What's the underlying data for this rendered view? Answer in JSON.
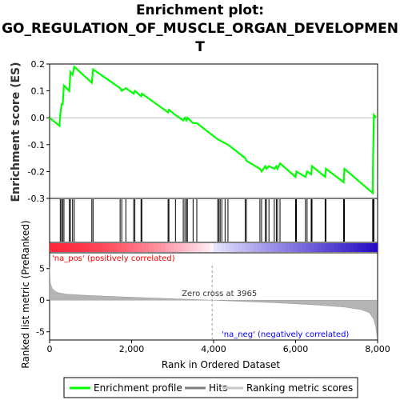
{
  "title_line1": "Enrichment plot:",
  "title_line2": "GO_REGULATION_OF_MUSCLE_ORGAN_DEVELOPMEN",
  "title_line3": "T",
  "chart_data": {
    "type": "line",
    "es_panel": {
      "ylabel": "Enrichment score (ES)",
      "ylim": [
        -0.3,
        0.2
      ],
      "yticks": [
        -0.3,
        -0.2,
        -0.1,
        0.0,
        0.1,
        0.2
      ],
      "ytick_labels": [
        "-0.3",
        "-0.2",
        "-0.1",
        "0.0",
        "0.1",
        "0.2"
      ],
      "series_color": "#00ff00",
      "points": [
        [
          0,
          0.0
        ],
        [
          240,
          -0.03
        ],
        [
          260,
          0.01
        ],
        [
          290,
          0.05
        ],
        [
          320,
          0.05
        ],
        [
          350,
          0.12
        ],
        [
          480,
          0.1
        ],
        [
          510,
          0.17
        ],
        [
          560,
          0.16
        ],
        [
          600,
          0.19
        ],
        [
          1030,
          0.13
        ],
        [
          1060,
          0.18
        ],
        [
          1720,
          0.11
        ],
        [
          1760,
          0.1
        ],
        [
          1860,
          0.11
        ],
        [
          2050,
          0.09
        ],
        [
          2080,
          0.1
        ],
        [
          2230,
          0.08
        ],
        [
          2250,
          0.09
        ],
        [
          2890,
          0.02
        ],
        [
          2910,
          0.03
        ],
        [
          3070,
          0.01
        ],
        [
          3260,
          -0.01
        ],
        [
          3300,
          0.0
        ],
        [
          3340,
          -0.01
        ],
        [
          3360,
          0.0
        ],
        [
          3500,
          -0.02
        ],
        [
          3590,
          -0.02
        ],
        [
          4100,
          -0.08
        ],
        [
          4350,
          -0.1
        ],
        [
          4770,
          -0.15
        ],
        [
          4800,
          -0.16
        ],
        [
          5130,
          -0.19
        ],
        [
          5170,
          -0.2
        ],
        [
          5260,
          -0.18
        ],
        [
          5290,
          -0.19
        ],
        [
          5350,
          -0.18
        ],
        [
          5480,
          -0.19
        ],
        [
          5530,
          -0.18
        ],
        [
          5560,
          -0.19
        ],
        [
          5620,
          -0.17
        ],
        [
          6000,
          -0.22
        ],
        [
          6020,
          -0.2
        ],
        [
          6240,
          -0.22
        ],
        [
          6280,
          -0.2
        ],
        [
          6380,
          -0.21
        ],
        [
          6400,
          -0.18
        ],
        [
          6720,
          -0.22
        ],
        [
          6740,
          -0.19
        ],
        [
          7170,
          -0.24
        ],
        [
          7190,
          -0.19
        ],
        [
          7880,
          -0.28
        ],
        [
          7890,
          -0.14
        ],
        [
          7910,
          0.01
        ],
        [
          7960,
          0.0
        ]
      ]
    },
    "hits": [
      260,
      290,
      320,
      350,
      480,
      510,
      560,
      600,
      1030,
      1060,
      1720,
      1760,
      1860,
      2050,
      2080,
      2230,
      2250,
      2890,
      2910,
      3070,
      3260,
      3300,
      3340,
      3360,
      3500,
      3590,
      4100,
      4130,
      4160,
      4200,
      4280,
      4350,
      4770,
      4800,
      5130,
      5170,
      5260,
      5290,
      5350,
      5480,
      5530,
      5560,
      5620,
      6000,
      6020,
      6240,
      6280,
      6380,
      6400,
      6720,
      6740,
      7170,
      7190,
      7880,
      7890,
      7910
    ],
    "metric_panel": {
      "ylabel": "Ranked list metric (PreRanked)",
      "ylim": [
        -6.3,
        7.5
      ],
      "yticks": [
        -5,
        0,
        5
      ],
      "ytick_labels": [
        "-5",
        "0",
        "5"
      ],
      "zero_cross_label": "Zero cross at 3965",
      "zero_cross": 3965,
      "pos_label": "'na_pos' (positively correlated)",
      "neg_label": "'na_neg' (negatively correlated)",
      "curve": [
        [
          0,
          5.2
        ],
        [
          20,
          2.7
        ],
        [
          60,
          1.9
        ],
        [
          120,
          1.5
        ],
        [
          200,
          1.2
        ],
        [
          400,
          0.95
        ],
        [
          800,
          0.8
        ],
        [
          1500,
          0.6
        ],
        [
          2500,
          0.35
        ],
        [
          3500,
          0.12
        ],
        [
          3965,
          0.0
        ],
        [
          4500,
          -0.15
        ],
        [
          5500,
          -0.4
        ],
        [
          6500,
          -0.75
        ],
        [
          7200,
          -1.1
        ],
        [
          7600,
          -1.5
        ],
        [
          7800,
          -2.0
        ],
        [
          7900,
          -3.0
        ],
        [
          7950,
          -4.0
        ],
        [
          7980,
          -5.5
        ],
        [
          7990,
          -6.0
        ]
      ]
    },
    "x_axis": {
      "label": "Rank in Ordered Dataset",
      "xlim": [
        0,
        8000
      ],
      "ticks": [
        0,
        2000,
        4000,
        6000,
        8000
      ],
      "tick_labels": [
        "0",
        "2,000",
        "4,000",
        "6,000",
        "8,000"
      ]
    },
    "legend": {
      "placement": "bottom",
      "items": [
        {
          "label": "Enrichment profile",
          "color": "#00ff00"
        },
        {
          "label": "Hits",
          "color": "#808080"
        },
        {
          "label": "Ranking metric scores",
          "color": "#c8c8c8"
        }
      ]
    }
  }
}
